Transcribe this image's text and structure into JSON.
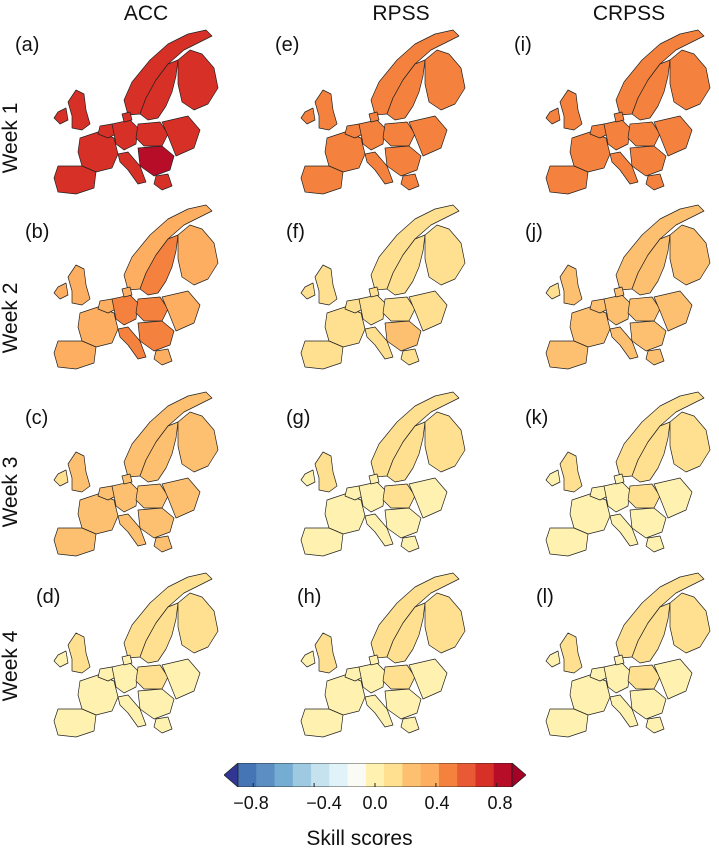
{
  "columns": [
    "ACC",
    "RPSS",
    "CRPSS"
  ],
  "rows": [
    "Week 1",
    "Week 2",
    "Week 3",
    "Week 4"
  ],
  "panels": [
    {
      "label": "(a)",
      "metric": "ACC",
      "week": "Week 1",
      "level": 0.75
    },
    {
      "label": "(e)",
      "metric": "RPSS",
      "week": "Week 1",
      "level": 0.45
    },
    {
      "label": "(i)",
      "metric": "CRPSS",
      "week": "Week 1",
      "level": 0.45
    },
    {
      "label": "(b)",
      "metric": "ACC",
      "week": "Week 2",
      "level": 0.4
    },
    {
      "label": "(f)",
      "metric": "RPSS",
      "week": "Week 2",
      "level": 0.15
    },
    {
      "label": "(j)",
      "metric": "CRPSS",
      "week": "Week 2",
      "level": 0.2
    },
    {
      "label": "(c)",
      "metric": "ACC",
      "week": "Week 3",
      "level": 0.2
    },
    {
      "label": "(g)",
      "metric": "RPSS",
      "week": "Week 3",
      "level": 0.08
    },
    {
      "label": "(k)",
      "metric": "CRPSS",
      "week": "Week 3",
      "level": 0.08
    },
    {
      "label": "(d)",
      "metric": "ACC",
      "week": "Week 4",
      "level": 0.1
    },
    {
      "label": "(h)",
      "metric": "RPSS",
      "week": "Week 4",
      "level": 0.05
    },
    {
      "label": "(l)",
      "metric": "CRPSS",
      "week": "Week 4",
      "level": 0.02
    }
  ],
  "colorbar": {
    "title": "Skill scores",
    "range": [
      -0.9,
      0.9
    ],
    "ticks": [
      "−0.8",
      "−0.4",
      "0.0",
      "0.4",
      "0.8"
    ],
    "colors": [
      "#313695",
      "#4575b4",
      "#5d8ec2",
      "#74add1",
      "#9ecae1",
      "#c6e2ee",
      "#e0f3f8",
      "#fbfbf5",
      "#fff2b0",
      "#fee090",
      "#fdc070",
      "#fdae61",
      "#f4823e",
      "#e85a33",
      "#d73027",
      "#b70d28",
      "#a50026"
    ]
  }
}
